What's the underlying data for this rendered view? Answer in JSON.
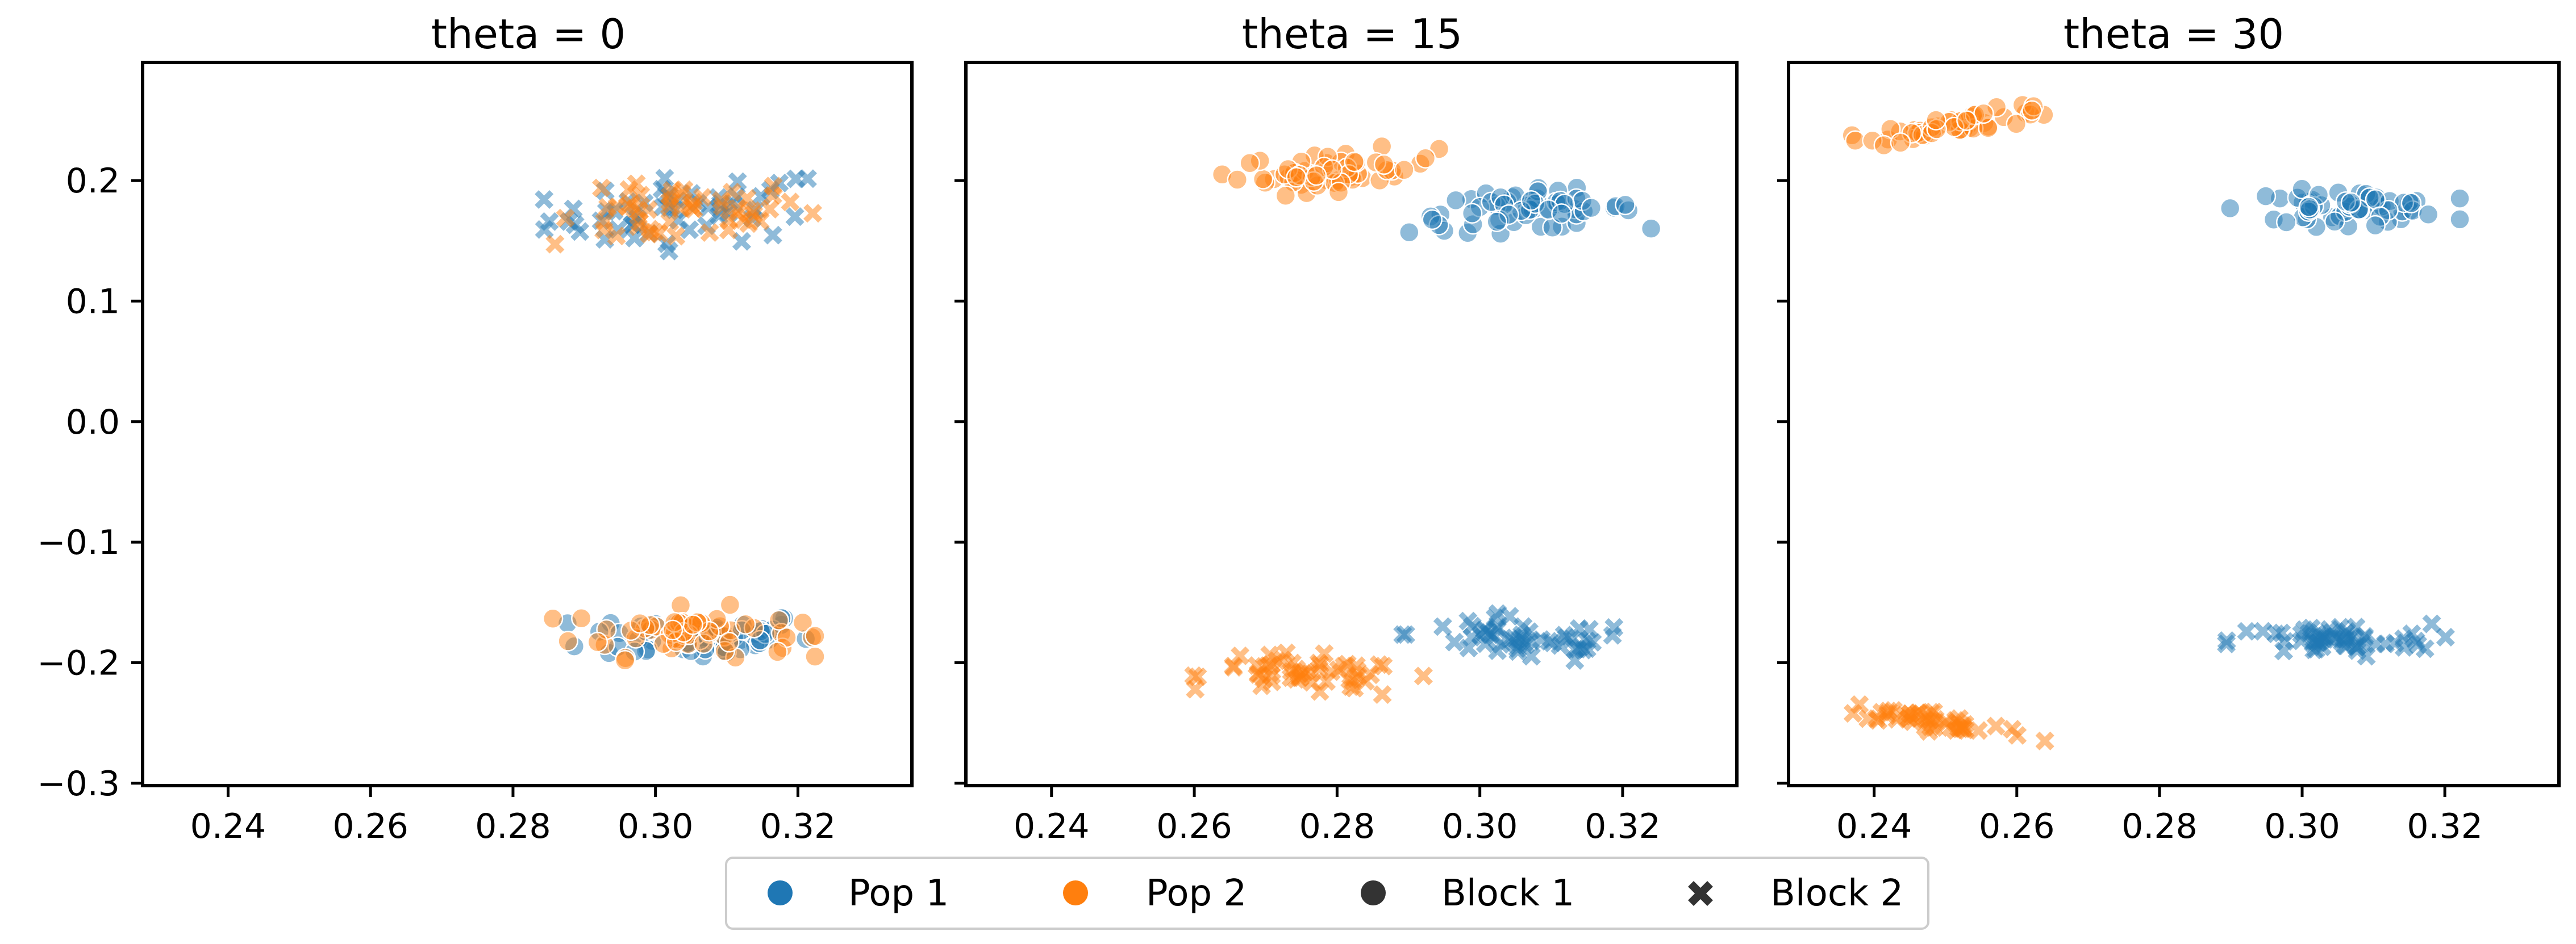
{
  "colors": {
    "pop1": "#1f77b4",
    "pop2": "#ff7f0e",
    "block_marker": "#333333"
  },
  "legend": {
    "placement": "bottom-center",
    "items": [
      {
        "label": "Pop 1",
        "kind": "hue",
        "color": "#1f77b4"
      },
      {
        "label": "Pop 2",
        "kind": "hue",
        "color": "#ff7f0e"
      },
      {
        "label": "Block 1",
        "kind": "marker",
        "marker": "circle"
      },
      {
        "label": "Block 2",
        "kind": "marker",
        "marker": "x"
      }
    ]
  },
  "chart_data": [
    {
      "type": "scatter",
      "title": "theta = 0",
      "xlim": [
        0.228,
        0.336
      ],
      "ylim": [
        -0.302,
        0.298
      ],
      "xticks": [
        "0.24",
        "0.26",
        "0.28",
        "0.30",
        "0.32"
      ],
      "yticks": [
        "0.2",
        "0.1",
        "0.0",
        "−0.1",
        "−0.2",
        "−0.3"
      ],
      "grid": false,
      "clusters": [
        {
          "series": "Pop 1",
          "block": "Block 2",
          "marker": "x",
          "center": [
            0.305,
            0.175
          ],
          "spread": [
            0.01,
            0.014
          ],
          "slope": 0.4,
          "n": 55
        },
        {
          "series": "Pop 2",
          "block": "Block 2",
          "marker": "x",
          "center": [
            0.303,
            0.172
          ],
          "spread": [
            0.009,
            0.012
          ],
          "slope": 0.4,
          "n": 55
        },
        {
          "series": "Pop 1",
          "block": "Block 1",
          "marker": "circle",
          "center": [
            0.306,
            -0.178
          ],
          "spread": [
            0.008,
            0.01
          ],
          "slope": 0.0,
          "n": 60
        },
        {
          "series": "Pop 2",
          "block": "Block 1",
          "marker": "circle",
          "center": [
            0.304,
            -0.175
          ],
          "spread": [
            0.008,
            0.01
          ],
          "slope": 0.0,
          "n": 60
        }
      ]
    },
    {
      "type": "scatter",
      "title": "theta = 15",
      "xlim": [
        0.228,
        0.336
      ],
      "ylim": [
        -0.302,
        0.298
      ],
      "xticks": [
        "0.24",
        "0.26",
        "0.28",
        "0.30",
        "0.32"
      ],
      "grid": false,
      "clusters": [
        {
          "series": "Pop 2",
          "block": "Block 1",
          "marker": "circle",
          "center": [
            0.28,
            0.208
          ],
          "spread": [
            0.007,
            0.008
          ],
          "slope": 0.3,
          "n": 55
        },
        {
          "series": "Pop 1",
          "block": "Block 1",
          "marker": "circle",
          "center": [
            0.306,
            0.175
          ],
          "spread": [
            0.008,
            0.008
          ],
          "slope": 0.2,
          "n": 60
        },
        {
          "series": "Pop 1",
          "block": "Block 2",
          "marker": "x",
          "center": [
            0.306,
            -0.181
          ],
          "spread": [
            0.008,
            0.009
          ],
          "slope": -0.3,
          "n": 55
        },
        {
          "series": "Pop 2",
          "block": "Block 2",
          "marker": "x",
          "center": [
            0.276,
            -0.21
          ],
          "spread": [
            0.007,
            0.008
          ],
          "slope": -0.4,
          "n": 55
        }
      ]
    },
    {
      "type": "scatter",
      "title": "theta = 30",
      "xlim": [
        0.228,
        0.336
      ],
      "ylim": [
        -0.302,
        0.298
      ],
      "xticks": [
        "0.24",
        "0.26",
        "0.28",
        "0.30",
        "0.32"
      ],
      "grid": false,
      "clusters": [
        {
          "series": "Pop 2",
          "block": "Block 1",
          "marker": "circle",
          "center": [
            0.253,
            0.248
          ],
          "spread": [
            0.007,
            0.004
          ],
          "slope": 0.9,
          "n": 50
        },
        {
          "series": "Pop 1",
          "block": "Block 1",
          "marker": "circle",
          "center": [
            0.306,
            0.178
          ],
          "spread": [
            0.007,
            0.007
          ],
          "slope": 0.1,
          "n": 60
        },
        {
          "series": "Pop 1",
          "block": "Block 2",
          "marker": "x",
          "center": [
            0.304,
            -0.182
          ],
          "spread": [
            0.007,
            0.007
          ],
          "slope": 0.0,
          "n": 60
        },
        {
          "series": "Pop 2",
          "block": "Block 2",
          "marker": "x",
          "center": [
            0.249,
            -0.249
          ],
          "spread": [
            0.007,
            0.004
          ],
          "slope": -0.9,
          "n": 50
        }
      ]
    }
  ]
}
